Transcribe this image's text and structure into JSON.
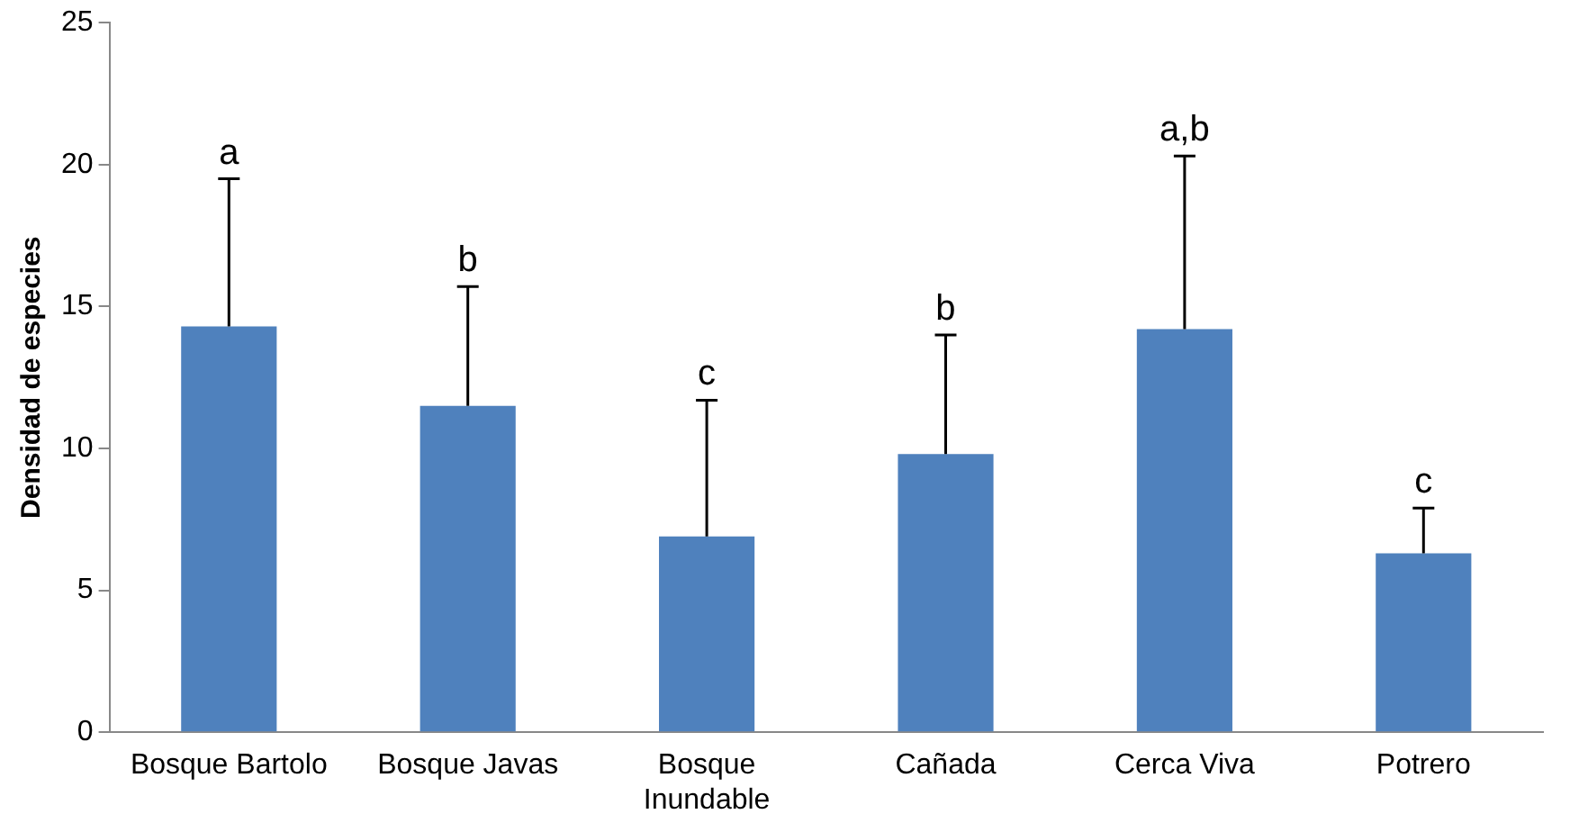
{
  "chart_data": {
    "type": "bar",
    "ylabel": "Densidad de especies",
    "categories": [
      "Bosque Bartolo",
      "Bosque Javas",
      "Bosque\nInundable",
      "Cañada",
      "Cerca Viva",
      "Potrero"
    ],
    "values": [
      14.3,
      11.5,
      6.9,
      9.8,
      14.2,
      6.3
    ],
    "errors": [
      [
        14.3,
        19.5
      ],
      [
        11.5,
        15.7
      ],
      [
        6.9,
        11.7
      ],
      [
        9.8,
        14
      ],
      [
        14.2,
        20.3
      ],
      [
        6.3,
        7.9
      ]
    ],
    "color": "#4f81bd",
    "ylim": [
      0,
      25
    ],
    "yticks": [
      0,
      5,
      10,
      15,
      20,
      25
    ],
    "grid": false,
    "legend": false,
    "annotations": [
      "a",
      "b",
      "c",
      "b",
      "a,b",
      "c"
    ]
  }
}
